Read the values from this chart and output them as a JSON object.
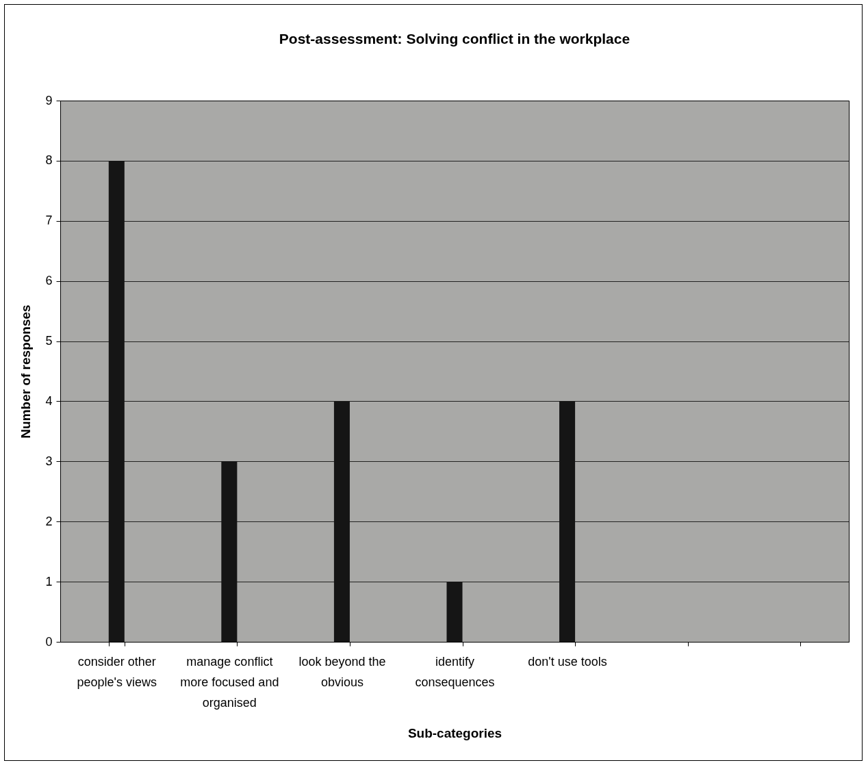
{
  "chart_data": {
    "type": "bar",
    "title": "Post-assessment: Solving conflict in the workplace",
    "xlabel": "Sub-categories",
    "ylabel": "Number of responses",
    "categories": [
      "consider other people's views",
      "manage conflict more focused and organised",
      "look beyond the obvious",
      "identify consequences",
      "don't use tools",
      null,
      null
    ],
    "values": [
      8,
      3,
      4,
      1,
      4,
      null,
      null
    ],
    "color": "#151515",
    "ylim": [
      0,
      9
    ],
    "yticks": [
      0,
      1,
      2,
      3,
      4,
      5,
      6,
      7,
      8,
      9
    ],
    "grid": "y"
  }
}
